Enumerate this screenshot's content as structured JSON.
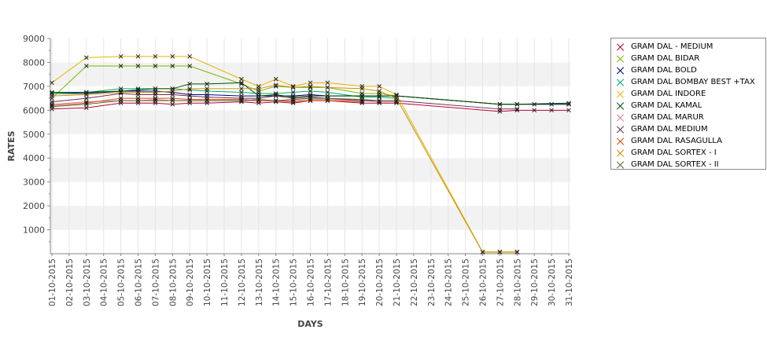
{
  "chart_data": {
    "type": "line",
    "xlabel": "DAYS",
    "ylabel": "RATES",
    "ylim": [
      0,
      9000
    ],
    "yticks": [
      1000,
      2000,
      3000,
      4000,
      5000,
      6000,
      7000,
      8000,
      9000
    ],
    "grid": false,
    "legend_position": "right",
    "categories": [
      "01-10-2015",
      "02-10-2015",
      "03-10-2015",
      "04-10-2015",
      "05-10-2015",
      "06-10-2015",
      "07-10-2015",
      "08-10-2015",
      "09-10-2015",
      "10-10-2015",
      "11-10-2015",
      "12-10-2015",
      "13-10-2015",
      "14-10-2015",
      "15-10-2015",
      "16-10-2015",
      "17-10-2015",
      "18-10-2015",
      "19-10-2015",
      "20-10-2015",
      "21-10-2015",
      "22-10-2015",
      "23-10-2015",
      "24-10-2015",
      "25-10-2015",
      "26-10-2015",
      "27-10-2015",
      "28-10-2015",
      "29-10-2015",
      "30-10-2015",
      "31-10-2015"
    ],
    "series": [
      {
        "name": "GRAM DAL - MEDIUM",
        "color": "#b8002e",
        "points": [
          [
            "01-10-2015",
            6050
          ],
          [
            "03-10-2015",
            6100
          ],
          [
            "05-10-2015",
            6300
          ],
          [
            "06-10-2015",
            6300
          ],
          [
            "07-10-2015",
            6300
          ],
          [
            "08-10-2015",
            6250
          ],
          [
            "09-10-2015",
            6300
          ],
          [
            "10-10-2015",
            6300
          ],
          [
            "12-10-2015",
            6350
          ],
          [
            "13-10-2015",
            6300
          ],
          [
            "14-10-2015",
            6350
          ],
          [
            "15-10-2015",
            6300
          ],
          [
            "16-10-2015",
            6400
          ],
          [
            "17-10-2015",
            6400
          ],
          [
            "19-10-2015",
            6300
          ],
          [
            "20-10-2015",
            6300
          ],
          [
            "21-10-2015",
            6300
          ],
          [
            "27-10-2015",
            5950
          ],
          [
            "28-10-2015",
            6000
          ],
          [
            "29-10-2015",
            6000
          ],
          [
            "30-10-2015",
            6000
          ],
          [
            "31-10-2015",
            6000
          ]
        ]
      },
      {
        "name": "GRAM DAL BIDAR",
        "color": "#7ab800",
        "points": [
          [
            "01-10-2015",
            6500
          ],
          [
            "03-10-2015",
            7850
          ],
          [
            "05-10-2015",
            7850
          ],
          [
            "06-10-2015",
            7850
          ],
          [
            "07-10-2015",
            7850
          ],
          [
            "08-10-2015",
            7850
          ],
          [
            "09-10-2015",
            7850
          ],
          [
            "12-10-2015",
            7100
          ],
          [
            "13-10-2015",
            6800
          ],
          [
            "14-10-2015",
            7000
          ],
          [
            "15-10-2015",
            6950
          ],
          [
            "16-10-2015",
            6950
          ],
          [
            "17-10-2015",
            6950
          ],
          [
            "19-10-2015",
            6700
          ],
          [
            "20-10-2015",
            6700
          ],
          [
            "21-10-2015",
            6600
          ],
          [
            "27-10-2015",
            6250
          ],
          [
            "28-10-2015",
            6250
          ],
          [
            "29-10-2015",
            6250
          ],
          [
            "30-10-2015",
            6250
          ],
          [
            "31-10-2015",
            6250
          ]
        ]
      },
      {
        "name": "GRAM DAL BOLD",
        "color": "#00007a",
        "points": [
          [
            "01-10-2015",
            6700
          ],
          [
            "03-10-2015",
            6700
          ],
          [
            "05-10-2015",
            6800
          ],
          [
            "06-10-2015",
            6800
          ],
          [
            "07-10-2015",
            6800
          ],
          [
            "08-10-2015",
            6750
          ],
          [
            "09-10-2015",
            6650
          ],
          [
            "10-10-2015",
            6650
          ],
          [
            "12-10-2015",
            6600
          ],
          [
            "13-10-2015",
            6600
          ],
          [
            "14-10-2015",
            6600
          ],
          [
            "15-10-2015",
            6600
          ],
          [
            "16-10-2015",
            6650
          ],
          [
            "17-10-2015",
            6600
          ],
          [
            "19-10-2015",
            6600
          ],
          [
            "20-10-2015",
            6600
          ],
          [
            "21-10-2015",
            6600
          ],
          [
            "27-10-2015",
            6250
          ],
          [
            "28-10-2015",
            6250
          ],
          [
            "31-10-2015",
            6250
          ]
        ]
      },
      {
        "name": "GRAM DAL BOMBAY BEST +TAX",
        "color": "#00a86b",
        "points": [
          [
            "01-10-2015",
            6700
          ],
          [
            "03-10-2015",
            6750
          ],
          [
            "05-10-2015",
            6900
          ],
          [
            "06-10-2015",
            6900
          ],
          [
            "07-10-2015",
            6900
          ],
          [
            "08-10-2015",
            6900
          ],
          [
            "09-10-2015",
            6850
          ],
          [
            "10-10-2015",
            6800
          ],
          [
            "12-10-2015",
            6750
          ],
          [
            "13-10-2015",
            6700
          ],
          [
            "14-10-2015",
            6700
          ],
          [
            "15-10-2015",
            6750
          ],
          [
            "16-10-2015",
            6800
          ],
          [
            "17-10-2015",
            6750
          ],
          [
            "19-10-2015",
            6550
          ],
          [
            "20-10-2015",
            6550
          ],
          [
            "21-10-2015",
            6500
          ]
        ]
      },
      {
        "name": "GRAM DAL INDORE",
        "color": "#e8b400",
        "points": [
          [
            "01-10-2015",
            7150
          ],
          [
            "03-10-2015",
            8200
          ],
          [
            "05-10-2015",
            8250
          ],
          [
            "06-10-2015",
            8250
          ],
          [
            "07-10-2015",
            8250
          ],
          [
            "08-10-2015",
            8250
          ],
          [
            "09-10-2015",
            8250
          ],
          [
            "12-10-2015",
            7300
          ],
          [
            "13-10-2015",
            7000
          ],
          [
            "14-10-2015",
            7300
          ],
          [
            "15-10-2015",
            7000
          ],
          [
            "16-10-2015",
            7150
          ],
          [
            "17-10-2015",
            7150
          ],
          [
            "19-10-2015",
            7000
          ],
          [
            "20-10-2015",
            7000
          ],
          [
            "21-10-2015",
            6650
          ],
          [
            "26-10-2015",
            80
          ],
          [
            "27-10-2015",
            80
          ],
          [
            "28-10-2015",
            80
          ]
        ]
      },
      {
        "name": "GRAM DAL KAMAL",
        "color": "#004d00",
        "points": [
          [
            "01-10-2015",
            6750
          ],
          [
            "03-10-2015",
            6750
          ],
          [
            "05-10-2015",
            6800
          ],
          [
            "06-10-2015",
            6850
          ],
          [
            "07-10-2015",
            6900
          ],
          [
            "08-10-2015",
            6900
          ],
          [
            "09-10-2015",
            7100
          ],
          [
            "10-10-2015",
            7100
          ],
          [
            "12-10-2015",
            7150
          ],
          [
            "13-10-2015",
            6600
          ],
          [
            "14-10-2015",
            6650
          ],
          [
            "15-10-2015",
            6550
          ],
          [
            "16-10-2015",
            6600
          ],
          [
            "17-10-2015",
            6600
          ],
          [
            "19-10-2015",
            6600
          ],
          [
            "20-10-2015",
            6600
          ],
          [
            "21-10-2015",
            6600
          ],
          [
            "27-10-2015",
            6250
          ],
          [
            "28-10-2015",
            6250
          ],
          [
            "31-10-2015",
            6300
          ]
        ]
      },
      {
        "name": "GRAM DAL MARUR",
        "color": "#e07a9a",
        "points": [
          [
            "01-10-2015",
            6250
          ],
          [
            "03-10-2015",
            6350
          ],
          [
            "05-10-2015",
            6400
          ],
          [
            "06-10-2015",
            6400
          ],
          [
            "07-10-2015",
            6450
          ],
          [
            "08-10-2015",
            6400
          ],
          [
            "09-10-2015",
            6400
          ],
          [
            "10-10-2015",
            6400
          ],
          [
            "12-10-2015",
            6400
          ],
          [
            "13-10-2015",
            6400
          ],
          [
            "14-10-2015",
            6400
          ],
          [
            "15-10-2015",
            6400
          ],
          [
            "16-10-2015",
            6450
          ],
          [
            "17-10-2015",
            6450
          ],
          [
            "19-10-2015",
            6400
          ],
          [
            "20-10-2015",
            6350
          ],
          [
            "21-10-2015",
            6350
          ]
        ]
      },
      {
        "name": "GRAM DAL MEDIUM",
        "color": "#6b2a52",
        "points": [
          [
            "01-10-2015",
            6350
          ],
          [
            "03-10-2015",
            6500
          ],
          [
            "05-10-2015",
            6700
          ],
          [
            "06-10-2015",
            6650
          ],
          [
            "07-10-2015",
            6650
          ],
          [
            "08-10-2015",
            6650
          ],
          [
            "09-10-2015",
            6600
          ],
          [
            "10-10-2015",
            6550
          ],
          [
            "12-10-2015",
            6500
          ],
          [
            "13-10-2015",
            6500
          ],
          [
            "14-10-2015",
            6600
          ],
          [
            "15-10-2015",
            6500
          ],
          [
            "16-10-2015",
            6550
          ],
          [
            "17-10-2015",
            6500
          ],
          [
            "19-10-2015",
            6400
          ],
          [
            "20-10-2015",
            6400
          ],
          [
            "21-10-2015",
            6400
          ],
          [
            "27-10-2015",
            6050
          ],
          [
            "28-10-2015",
            6050
          ]
        ]
      },
      {
        "name": "GRAM DAL RASAGULLA",
        "color": "#d44a00",
        "points": [
          [
            "01-10-2015",
            6200
          ],
          [
            "03-10-2015",
            6300
          ],
          [
            "05-10-2015",
            6500
          ],
          [
            "06-10-2015",
            6500
          ],
          [
            "07-10-2015",
            6500
          ],
          [
            "08-10-2015",
            6500
          ],
          [
            "09-10-2015",
            6450
          ],
          [
            "10-10-2015",
            6450
          ],
          [
            "12-10-2015",
            6450
          ],
          [
            "13-10-2015",
            6400
          ],
          [
            "14-10-2015",
            6400
          ],
          [
            "15-10-2015",
            6350
          ],
          [
            "16-10-2015",
            6400
          ],
          [
            "17-10-2015",
            6400
          ],
          [
            "19-10-2015",
            6350
          ]
        ]
      },
      {
        "name": "GRAM DAL SORTEX  - I",
        "color": "#c89000",
        "points": [
          [
            "01-10-2015",
            6600
          ],
          [
            "03-10-2015",
            6650
          ],
          [
            "05-10-2015",
            6750
          ],
          [
            "06-10-2015",
            6750
          ],
          [
            "07-10-2015",
            6750
          ],
          [
            "08-10-2015",
            6800
          ],
          [
            "09-10-2015",
            6900
          ],
          [
            "10-10-2015",
            6900
          ],
          [
            "12-10-2015",
            6900
          ],
          [
            "13-10-2015",
            6900
          ],
          [
            "14-10-2015",
            7050
          ],
          [
            "15-10-2015",
            6950
          ],
          [
            "16-10-2015",
            7000
          ],
          [
            "17-10-2015",
            6950
          ],
          [
            "19-10-2015",
            6900
          ],
          [
            "20-10-2015",
            6800
          ],
          [
            "21-10-2015",
            6500
          ],
          [
            "26-10-2015",
            60
          ],
          [
            "27-10-2015",
            60
          ],
          [
            "28-10-2015",
            60
          ]
        ]
      },
      {
        "name": "GRAM DAL SORTEX - II",
        "color": "#556b2f",
        "points": [
          [
            "01-10-2015",
            6150
          ],
          [
            "03-10-2015",
            6250
          ],
          [
            "05-10-2015",
            6400
          ],
          [
            "06-10-2015",
            6400
          ],
          [
            "07-10-2015",
            6400
          ],
          [
            "08-10-2015",
            6400
          ],
          [
            "09-10-2015",
            6400
          ],
          [
            "10-10-2015",
            6400
          ],
          [
            "12-10-2015",
            6400
          ],
          [
            "13-10-2015",
            6450
          ],
          [
            "14-10-2015",
            6400
          ],
          [
            "15-10-2015",
            6450
          ],
          [
            "16-10-2015",
            6500
          ],
          [
            "17-10-2015",
            6500
          ],
          [
            "19-10-2015",
            6450
          ],
          [
            "20-10-2015",
            6400
          ],
          [
            "21-10-2015",
            6400
          ]
        ]
      }
    ]
  }
}
